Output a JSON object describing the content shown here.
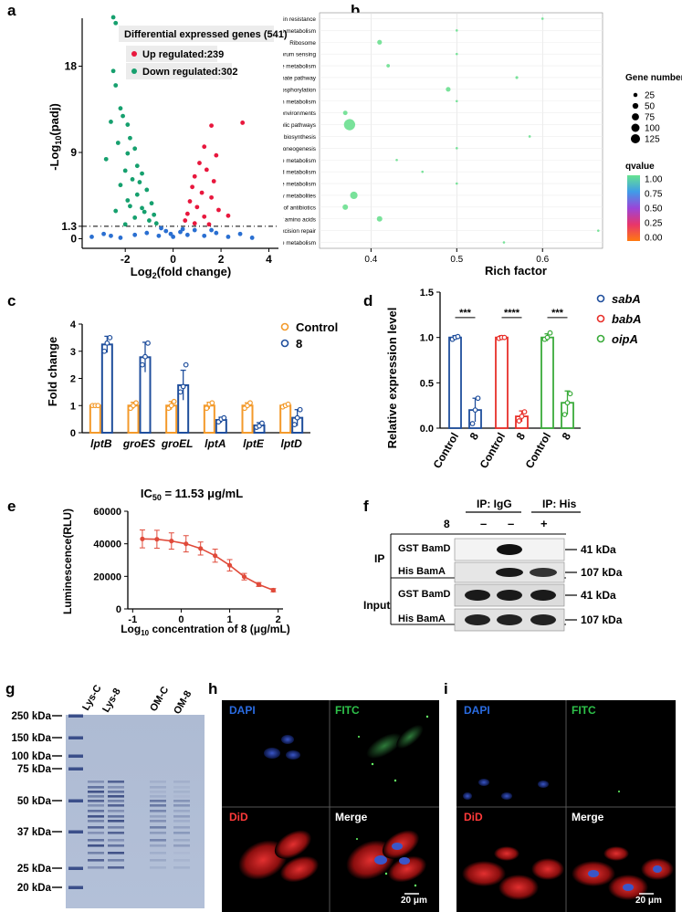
{
  "panel_labels": {
    "a": "a",
    "b": "b",
    "c": "c",
    "d": "d",
    "e": "e",
    "f": "f",
    "g": "g",
    "h": "h",
    "i": "i"
  },
  "chart_data": [
    {
      "id": "a",
      "type": "scatter",
      "title": "",
      "xlabel": "Log2(fold change)",
      "ylabel": "-Log10(padj)",
      "xlim": [
        -3.8,
        4.4
      ],
      "ylim": [
        -1,
        23
      ],
      "xticks": [
        -2,
        0,
        2,
        4
      ],
      "yticks": [
        0,
        1.3,
        9,
        18
      ],
      "threshold_y": 1.3,
      "legend": {
        "title": "Differential expressed genes (541)",
        "up": "Up regulated:239",
        "down": "Down regulated:302",
        "colors": {
          "up": "#e8173d",
          "down": "#16a06e",
          "ns": "#2a6fd1"
        }
      },
      "series": [
        {
          "name": "Down regulated:302",
          "points": [
            [
              -2.5,
              23.1
            ],
            [
              -2.4,
              22.5
            ],
            [
              -2.5,
              17.5
            ],
            [
              -2.4,
              16.0
            ],
            [
              -2.2,
              13.6
            ],
            [
              -2.1,
              12.8
            ],
            [
              -1.9,
              11.9
            ],
            [
              -2.6,
              12.2
            ],
            [
              -1.8,
              10.5
            ],
            [
              -2.3,
              10.0
            ],
            [
              -1.6,
              9.4
            ],
            [
              -1.9,
              8.9
            ],
            [
              -2.8,
              8.3
            ],
            [
              -1.5,
              7.6
            ],
            [
              -2.0,
              7.1
            ],
            [
              -1.3,
              6.8
            ],
            [
              -1.7,
              6.2
            ],
            [
              -2.2,
              5.6
            ],
            [
              -1.1,
              5.1
            ],
            [
              -1.5,
              4.6
            ],
            [
              -1.9,
              4.0
            ],
            [
              -0.9,
              3.7
            ],
            [
              -1.3,
              3.2
            ],
            [
              -2.4,
              2.9
            ],
            [
              -0.8,
              2.5
            ],
            [
              -1.6,
              2.2
            ],
            [
              -1.0,
              1.9
            ],
            [
              -0.7,
              1.6
            ],
            [
              -2.0,
              1.5
            ],
            [
              -1.4,
              5.9
            ],
            [
              -1.8,
              3.4
            ],
            [
              -1.2,
              2.8
            ]
          ]
        },
        {
          "name": "Up regulated:239",
          "points": [
            [
              2.9,
              12.1
            ],
            [
              1.6,
              11.8
            ],
            [
              1.3,
              9.6
            ],
            [
              1.8,
              8.7
            ],
            [
              1.1,
              7.9
            ],
            [
              1.4,
              7.2
            ],
            [
              0.9,
              6.5
            ],
            [
              1.7,
              6.0
            ],
            [
              0.8,
              5.4
            ],
            [
              1.2,
              4.8
            ],
            [
              1.6,
              4.3
            ],
            [
              0.7,
              3.9
            ],
            [
              1.0,
              3.3
            ],
            [
              1.9,
              3.0
            ],
            [
              0.6,
              2.6
            ],
            [
              1.3,
              2.3
            ],
            [
              0.5,
              1.9
            ],
            [
              0.9,
              1.6
            ],
            [
              1.5,
              1.5
            ],
            [
              2.3,
              2.4
            ]
          ]
        },
        {
          "name": "Not significant",
          "points": [
            [
              -3.4,
              0.2
            ],
            [
              -2.9,
              0.5
            ],
            [
              -2.2,
              0.1
            ],
            [
              -1.6,
              0.4
            ],
            [
              -1.1,
              0.6
            ],
            [
              -0.6,
              0.3
            ],
            [
              -0.3,
              0.8
            ],
            [
              0.0,
              0.2
            ],
            [
              0.3,
              0.7
            ],
            [
              0.6,
              0.4
            ],
            [
              0.9,
              0.9
            ],
            [
              1.3,
              0.3
            ],
            [
              1.8,
              0.6
            ],
            [
              2.3,
              0.2
            ],
            [
              2.8,
              0.5
            ],
            [
              3.3,
              0.1
            ],
            [
              -0.5,
              1.1
            ],
            [
              0.4,
              1.0
            ],
            [
              -0.1,
              0.5
            ],
            [
              1.6,
              0.9
            ],
            [
              -2.6,
              0.3
            ]
          ]
        }
      ]
    },
    {
      "id": "b",
      "type": "scatter",
      "title": "",
      "xlabel": "Rich factor",
      "ylabel": "",
      "xlim": [
        0.34,
        0.67
      ],
      "xticks": [
        0.4,
        0.5,
        0.6
      ],
      "categories": [
        "Vancomycin resistance",
        "Thiamine metabolism",
        "Ribosome",
        "Quorum sensing",
        "Purine metabolism",
        "Pentose phosphate pathway",
        "Oxidative phosphorylation",
        "Nitrogen metabolism",
        "Microbial metabolism in diverse environments",
        "Metabolic pathways",
        "Lysine biosynthesis",
        "Glycolysis / Gluconeogenesis",
        "Glycine, serine and threonine metabolism",
        "Glycerophospholipid metabolism",
        "Cysteine and methionine metabolism",
        "Biosynthesis of secondary metabolites",
        "Biosynthesis of antibiotics",
        "Biosynthesis of amino acids",
        "Base excision repair",
        "Arginine and proline metabolism"
      ],
      "rich_factor": [
        0.6,
        0.5,
        0.41,
        0.5,
        0.42,
        0.57,
        0.49,
        0.5,
        0.37,
        0.375,
        0.585,
        0.5,
        0.43,
        0.46,
        0.5,
        0.38,
        0.37,
        0.41,
        0.665,
        0.555
      ],
      "gene_number": [
        3,
        4,
        22,
        4,
        12,
        8,
        22,
        3,
        20,
        125,
        6,
        5,
        4,
        3,
        4,
        55,
        30,
        30,
        5,
        4
      ],
      "qvalue": [
        1.0,
        1.0,
        1.0,
        1.0,
        1.0,
        1.0,
        1.0,
        1.0,
        1.0,
        1.0,
        1.0,
        1.0,
        1.0,
        1.0,
        1.0,
        1.0,
        1.0,
        1.0,
        1.0,
        1.0
      ],
      "legend": {
        "size_title": "Gene number",
        "size_values": [
          25,
          50,
          75,
          100,
          125
        ],
        "size_labels": [
          "25",
          "50",
          "75",
          "100",
          "125"
        ],
        "color_title": "qvalue",
        "color_ticks": [
          "1.00",
          "0.75",
          "0.50",
          "0.25",
          "0.00"
        ],
        "point_color": "#79e29a"
      }
    },
    {
      "id": "c",
      "type": "bar",
      "title": "",
      "xlabel": "",
      "ylabel": "Fold change",
      "ylim": [
        0,
        4
      ],
      "yticks": [
        0,
        1,
        2,
        3,
        4
      ],
      "categories": [
        "lptB",
        "groES",
        "groEL",
        "lptA",
        "lptE",
        "lptD"
      ],
      "series": [
        {
          "name": "Control",
          "color": "#f39a2b",
          "values": [
            1.0,
            1.0,
            1.0,
            1.0,
            1.0,
            1.0
          ],
          "errors": [
            0.05,
            0.12,
            0.15,
            0.12,
            0.1,
            0.06
          ],
          "points": [
            [
              1,
              1,
              1
            ],
            [
              0.9,
              1.0,
              1.1
            ],
            [
              0.9,
              1.0,
              1.15
            ],
            [
              0.9,
              1.05,
              1.1
            ],
            [
              0.9,
              1.0,
              1.1
            ],
            [
              0.95,
              1.0,
              1.05
            ]
          ]
        },
        {
          "name": "8",
          "color": "#1f4e9c",
          "values": [
            3.25,
            2.78,
            1.75,
            0.47,
            0.27,
            0.55
          ],
          "errors": [
            0.3,
            0.55,
            0.55,
            0.1,
            0.1,
            0.3
          ],
          "points": [
            [
              3.0,
              3.3,
              3.5
            ],
            [
              2.5,
              2.8,
              3.3
            ],
            [
              1.5,
              1.7,
              2.5
            ],
            [
              0.4,
              0.5,
              0.55
            ],
            [
              0.2,
              0.25,
              0.35
            ],
            [
              0.3,
              0.55,
              0.85
            ]
          ]
        }
      ]
    },
    {
      "id": "d",
      "type": "bar",
      "title": "",
      "xlabel": "",
      "ylabel": "Relative expression level",
      "ylim": [
        0,
        1.5
      ],
      "yticks": [
        0.0,
        0.5,
        1.0,
        1.5
      ],
      "categories": [
        "Control",
        "8",
        "Control",
        "8",
        "Control",
        "8"
      ],
      "groups": [
        "sabA",
        "babA",
        "oipA"
      ],
      "colors": [
        "#1f4e9c",
        "#e8302a",
        "#3aab3a"
      ],
      "values": [
        1.0,
        0.2,
        1.0,
        0.13,
        1.0,
        0.28
      ],
      "errors": [
        0.02,
        0.13,
        0.02,
        0.06,
        0.04,
        0.13
      ],
      "points": [
        [
          0.98,
          1.0,
          1.01
        ],
        [
          0.05,
          0.2,
          0.33
        ],
        [
          0.99,
          1.0,
          1.0
        ],
        [
          0.08,
          0.13,
          0.18
        ],
        [
          0.98,
          1.0,
          1.05
        ],
        [
          0.15,
          0.28,
          0.38
        ]
      ],
      "significance": [
        "***",
        "****",
        "***"
      ]
    },
    {
      "id": "e",
      "type": "line",
      "title": "IC50 = 11.53 μg/mL",
      "xlabel": "Log10 concentration of 8 (μg/mL)",
      "ylabel": "Luminescence(RLU)",
      "xlim": [
        -1.1,
        2.1
      ],
      "ylim": [
        0,
        60000
      ],
      "xticks": [
        -1,
        0,
        1,
        2
      ],
      "yticks": [
        0,
        20000,
        40000,
        60000
      ],
      "series": [
        {
          "name": "",
          "color": "#e04a3a",
          "x": [
            -0.8,
            -0.5,
            -0.2,
            0.1,
            0.4,
            0.7,
            1.0,
            1.3,
            1.6,
            1.9
          ],
          "y": [
            43000,
            42800,
            41700,
            40000,
            37100,
            32700,
            26800,
            19800,
            15000,
            11500
          ],
          "errors": [
            5500,
            5500,
            5000,
            5000,
            4000,
            4000,
            3500,
            2000,
            1200,
            1000
          ]
        }
      ]
    }
  ],
  "panel_f": {
    "ip_igg": "IP: IgG",
    "ip_his": "IP: His",
    "compound_label": "8",
    "signs": [
      "–",
      "–",
      "+"
    ],
    "section_ip": "IP",
    "section_input": "Input",
    "rows": [
      "GST BamD",
      "His BamA",
      "GST BamD",
      "His BamA"
    ],
    "sizes": [
      "41 kDa",
      "107 kDa",
      "41 kDa",
      "107 kDa"
    ]
  },
  "panel_g": {
    "lanes": [
      "Lys-C",
      "Lys-8",
      "OM-C",
      "OM-8"
    ],
    "markers": [
      "250 kDa",
      "150 kDa",
      "100 kDa",
      "75 kDa",
      "50 kDa",
      "37 kDa",
      "25 kDa",
      "20 kDa"
    ]
  },
  "panel_h": {
    "dapi": "DAPI",
    "fitc": "FITC",
    "did": "DiD",
    "merge": "Merge",
    "scale": "20 μm"
  },
  "panel_i": {
    "dapi": "DAPI",
    "fitc": "FITC",
    "did": "DiD",
    "merge": "Merge",
    "scale": "20 μm"
  }
}
